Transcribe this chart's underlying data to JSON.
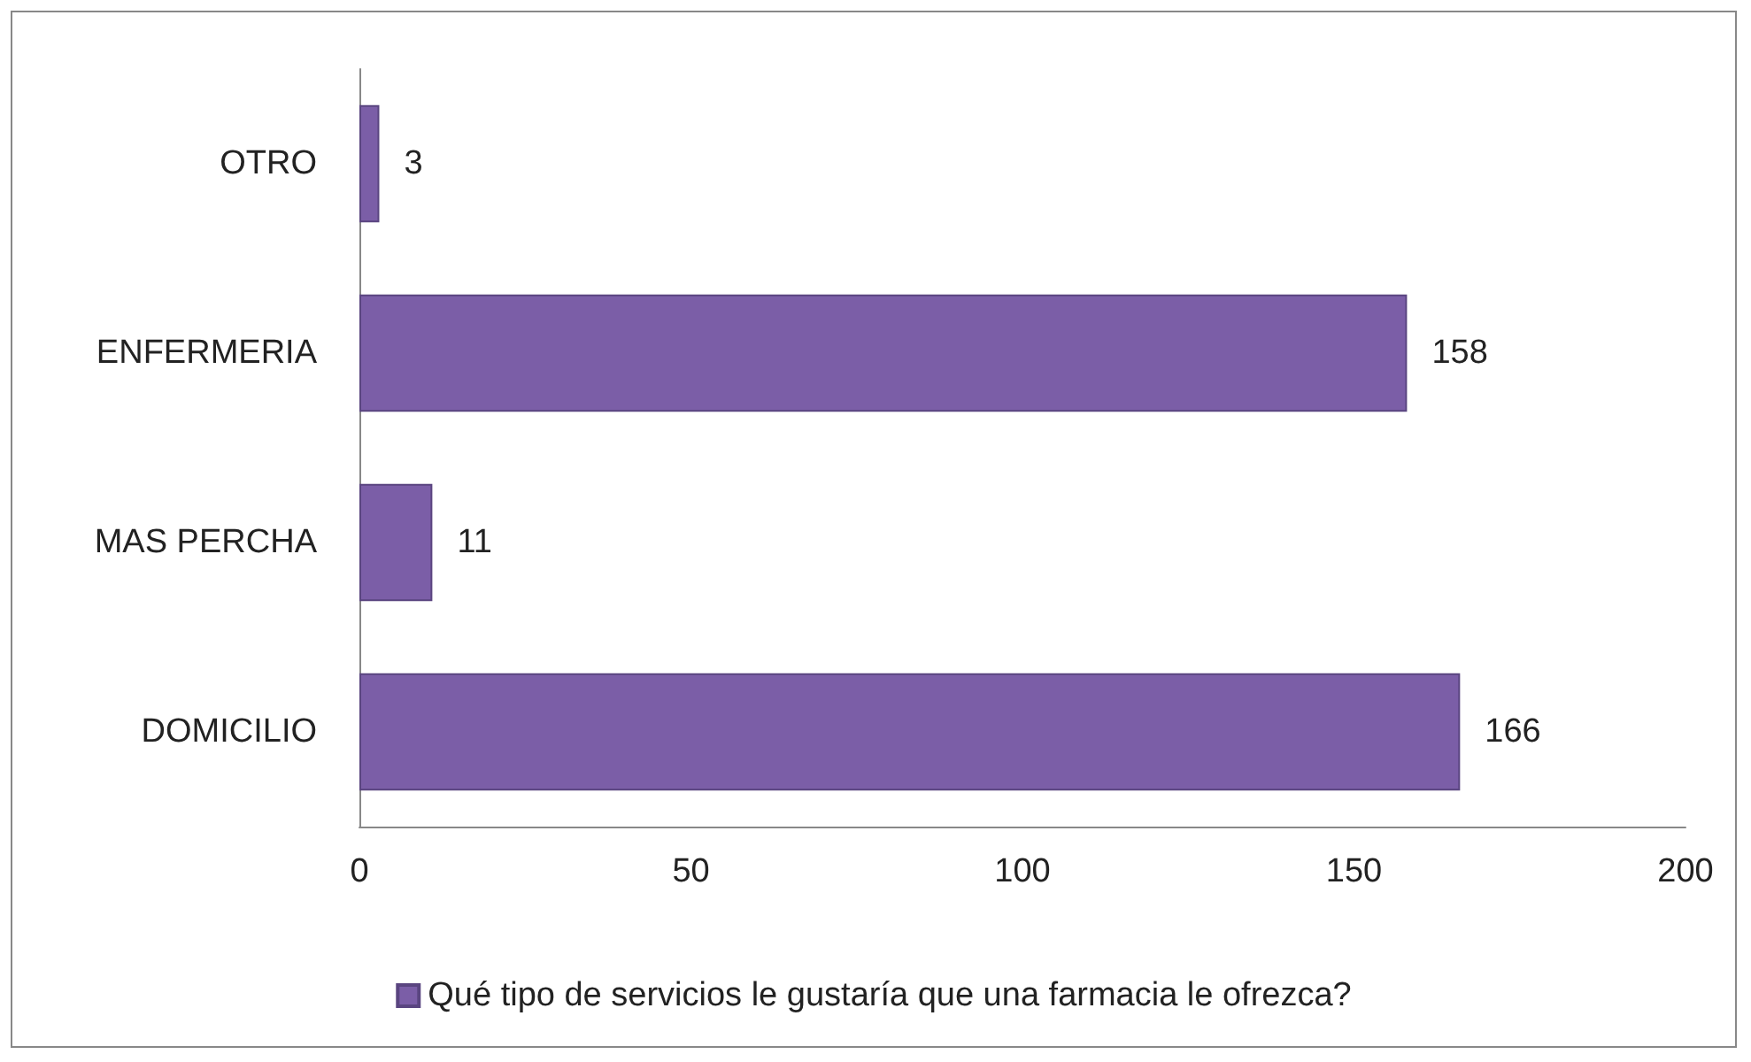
{
  "chart_data": {
    "type": "bar",
    "orientation": "horizontal",
    "categories": [
      "OTRO",
      "ENFERMERIA",
      "MAS PERCHA",
      "DOMICILIO"
    ],
    "series": [
      {
        "name": "Qué tipo de servicios le gustaría que una farmacia le ofrezca?",
        "color": "#7b5ea7",
        "values": [
          3,
          158,
          11,
          166
        ]
      }
    ],
    "xlim": [
      0,
      200
    ],
    "xticks": [
      0,
      50,
      100,
      150,
      200
    ],
    "grid": false,
    "legend": "bottom",
    "data_labels": true
  }
}
